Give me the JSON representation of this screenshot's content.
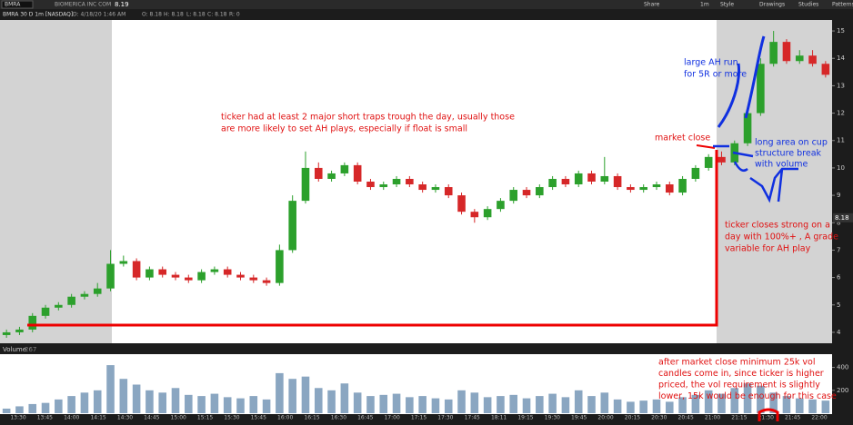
{
  "toolbar": {
    "symbol": "BMRA",
    "company": "BIOMERICA INC COM",
    "last": "8.19",
    "actions": [
      "Share",
      "1m",
      "Style",
      "Drawings",
      "Studies",
      "Patterns"
    ]
  },
  "chart_header": {
    "title": "BMRA 30 D 1m [NASDAQ]",
    "date": "D: 4/18/20 1:46 AM",
    "open": "O: 8.18",
    "high": "H: 8.18",
    "low": "L: 8.18",
    "close": "C: 8.18",
    "range": "R: 0"
  },
  "volume_header": {
    "title": "Volume",
    "value": "267"
  },
  "chart_data": {
    "type": "candlestick",
    "up_color": "#2ca02c",
    "down_color": "#d62728",
    "open": [
      3.9,
      4.0,
      4.1,
      4.6,
      4.9,
      5.0,
      5.3,
      5.4,
      5.6,
      6.5,
      6.6,
      6.0,
      6.3,
      6.1,
      6.0,
      5.9,
      6.2,
      6.3,
      6.1,
      6.0,
      5.9,
      5.8,
      7.0,
      8.8,
      10.0,
      9.6,
      9.8,
      10.1,
      9.5,
      9.3,
      9.4,
      9.6,
      9.4,
      9.2,
      9.3,
      9.0,
      8.4,
      8.2,
      8.5,
      8.8,
      9.2,
      9.0,
      9.3,
      9.6,
      9.4,
      9.8,
      9.5,
      9.7,
      9.3,
      9.2,
      9.3,
      9.4,
      9.1,
      9.6,
      10.0,
      10.4,
      10.2,
      10.9,
      12.0,
      13.8,
      14.6,
      13.9,
      14.1,
      13.8
    ],
    "high": [
      4.1,
      4.2,
      4.7,
      5.0,
      5.1,
      5.4,
      5.5,
      5.8,
      7.0,
      6.8,
      6.7,
      6.4,
      6.4,
      6.2,
      6.1,
      6.3,
      6.4,
      6.4,
      6.2,
      6.1,
      6.0,
      7.2,
      9.0,
      10.6,
      10.2,
      9.9,
      10.2,
      10.2,
      9.6,
      9.5,
      9.7,
      9.7,
      9.5,
      9.4,
      9.4,
      9.1,
      8.5,
      8.6,
      8.9,
      9.3,
      9.3,
      9.4,
      9.7,
      9.7,
      9.9,
      9.9,
      10.4,
      9.8,
      9.4,
      9.4,
      9.5,
      9.5,
      9.7,
      10.1,
      10.5,
      10.6,
      11.0,
      12.2,
      14.0,
      15.0,
      14.7,
      14.3,
      14.3,
      13.9
    ],
    "low": [
      3.8,
      3.9,
      4.0,
      4.5,
      4.8,
      4.9,
      5.2,
      5.3,
      5.5,
      6.4,
      5.9,
      5.9,
      6.0,
      5.9,
      5.8,
      5.8,
      6.1,
      6.0,
      5.9,
      5.8,
      5.7,
      5.7,
      6.9,
      8.7,
      9.5,
      9.5,
      9.7,
      9.4,
      9.2,
      9.2,
      9.3,
      9.3,
      9.1,
      9.1,
      8.9,
      8.3,
      8.0,
      8.1,
      8.4,
      8.7,
      8.9,
      8.9,
      9.2,
      9.3,
      9.3,
      9.4,
      9.4,
      9.2,
      9.1,
      9.1,
      9.2,
      9.0,
      9.0,
      9.5,
      9.9,
      10.1,
      10.1,
      10.8,
      11.9,
      13.7,
      13.8,
      13.8,
      13.7,
      13.3
    ],
    "close": [
      4.0,
      4.1,
      4.6,
      4.9,
      5.0,
      5.3,
      5.4,
      5.6,
      6.5,
      6.6,
      6.0,
      6.3,
      6.1,
      6.0,
      5.9,
      6.2,
      6.3,
      6.1,
      6.0,
      5.9,
      5.8,
      7.0,
      8.8,
      10.0,
      9.6,
      9.8,
      10.1,
      9.5,
      9.3,
      9.4,
      9.6,
      9.4,
      9.2,
      9.3,
      9.0,
      8.4,
      8.2,
      8.5,
      8.8,
      9.2,
      9.0,
      9.3,
      9.6,
      9.4,
      9.8,
      9.5,
      9.7,
      9.3,
      9.2,
      9.3,
      9.4,
      9.1,
      9.6,
      10.0,
      10.4,
      10.2,
      10.9,
      12.0,
      13.8,
      14.6,
      13.9,
      14.1,
      13.8,
      13.4
    ],
    "volume": [
      40,
      60,
      80,
      90,
      120,
      150,
      180,
      200,
      420,
      300,
      250,
      200,
      180,
      220,
      160,
      150,
      170,
      140,
      130,
      150,
      120,
      350,
      300,
      320,
      220,
      200,
      260,
      180,
      150,
      160,
      170,
      140,
      150,
      130,
      120,
      200,
      180,
      140,
      150,
      160,
      130,
      150,
      170,
      140,
      200,
      150,
      180,
      120,
      100,
      110,
      120,
      100,
      140,
      160,
      200,
      170,
      220,
      260,
      240,
      180,
      150,
      130,
      120,
      110
    ],
    "ylim": [
      3.6,
      15.4
    ],
    "yticks": [
      4,
      5,
      6,
      7,
      8,
      9,
      10,
      11,
      12,
      13,
      14,
      15
    ],
    "current_price": "8.18",
    "vlim": [
      0,
      500
    ],
    "vticks": [
      200,
      400
    ],
    "xticks": [
      "13:30",
      "13:45",
      "14:00",
      "14:15",
      "14:30",
      "14:45",
      "15:00",
      "15:15",
      "15:30",
      "15:45",
      "16:00",
      "16:15",
      "16:30",
      "16:45",
      "17:00",
      "17:15",
      "17:30",
      "17:45",
      "18:11",
      "19:15",
      "19:30",
      "19:45",
      "20:00",
      "20:15",
      "20:30",
      "20:45",
      "21:00",
      "21:15",
      "21:30",
      "21:45",
      "22:00"
    ]
  },
  "annotations": {
    "short_traps": [
      "ticker had at least 2 major short traps trough the day, usually those",
      "are more likely to set AH plays, especially if float is small"
    ],
    "market_close": "market close",
    "ah_run": [
      "large AH run",
      "for 5R or more"
    ],
    "cup": [
      "long area on cup",
      "structure break",
      "with volume"
    ],
    "close_strong": [
      "ticker closes strong on a",
      "day with 100%+ , A grade",
      "variable for AH play"
    ],
    "volume_note": [
      "after market close minimum 25k vol",
      "candles come in, since ticker is higher",
      "priced, the vol requirement is slightly",
      "lower, 15k would be enough for this case"
    ]
  }
}
